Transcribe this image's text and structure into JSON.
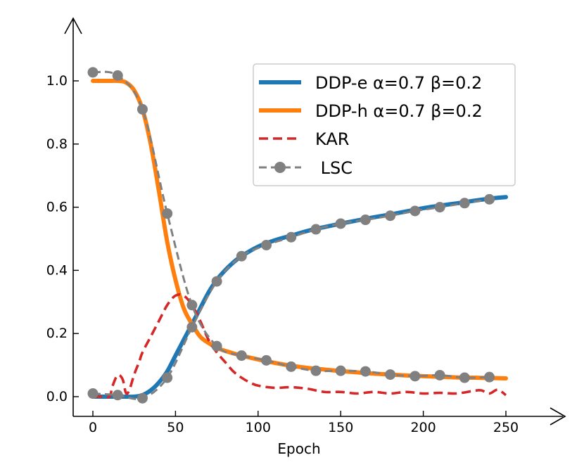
{
  "chart_data": {
    "type": "line",
    "title": "",
    "xlabel": "Epoch",
    "ylabel": "",
    "xlim": [
      -11,
      290
    ],
    "ylim": [
      -0.06,
      1.2
    ],
    "xticks": [
      0,
      50,
      100,
      150,
      200,
      250
    ],
    "yticks": [
      0.0,
      0.2,
      0.4,
      0.6,
      0.8,
      1.0
    ],
    "xtick_labels": [
      "0",
      "50",
      "100",
      "150",
      "200",
      "250"
    ],
    "ytick_labels": [
      "0.0",
      "0.2",
      "0.4",
      "0.6",
      "0.8",
      "1.0"
    ],
    "grid": false,
    "legend_position": "top-right",
    "series": [
      {
        "name": "DDP-e α=0.7 β=0.2",
        "color": "#1f77b4",
        "style": "solid",
        "x": [
          0,
          10,
          20,
          25,
          30,
          35,
          40,
          45,
          50,
          55,
          60,
          65,
          70,
          75,
          80,
          85,
          90,
          100,
          110,
          120,
          130,
          140,
          150,
          160,
          170,
          180,
          190,
          200,
          210,
          220,
          230,
          240,
          250
        ],
        "y": [
          0.0,
          0.0,
          0.0,
          0.0,
          0.005,
          0.02,
          0.045,
          0.08,
          0.13,
          0.18,
          0.23,
          0.28,
          0.33,
          0.37,
          0.4,
          0.425,
          0.445,
          0.475,
          0.495,
          0.51,
          0.525,
          0.537,
          0.548,
          0.558,
          0.568,
          0.577,
          0.587,
          0.597,
          0.605,
          0.612,
          0.62,
          0.627,
          0.632
        ]
      },
      {
        "name": "DDP-h α=0.7 β=0.2",
        "color": "#ff7f0e",
        "style": "solid",
        "x": [
          0,
          10,
          15,
          20,
          25,
          30,
          35,
          40,
          45,
          50,
          55,
          60,
          65,
          70,
          75,
          80,
          90,
          100,
          110,
          120,
          130,
          140,
          150,
          160,
          170,
          180,
          190,
          200,
          210,
          220,
          230,
          240,
          250
        ],
        "y": [
          1.0,
          1.0,
          1.0,
          0.995,
          0.97,
          0.91,
          0.8,
          0.65,
          0.49,
          0.37,
          0.28,
          0.23,
          0.19,
          0.17,
          0.155,
          0.145,
          0.13,
          0.118,
          0.107,
          0.098,
          0.091,
          0.086,
          0.081,
          0.077,
          0.073,
          0.07,
          0.067,
          0.065,
          0.063,
          0.061,
          0.06,
          0.059,
          0.058
        ]
      },
      {
        "name": "KAR",
        "color": "#d62728",
        "style": "dashed",
        "x": [
          0,
          5,
          10,
          12,
          15,
          18,
          20,
          22,
          25,
          28,
          30,
          35,
          40,
          45,
          50,
          55,
          60,
          65,
          70,
          75,
          80,
          85,
          90,
          95,
          100,
          110,
          120,
          130,
          140,
          150,
          160,
          170,
          180,
          190,
          200,
          210,
          220,
          230,
          235,
          240,
          245,
          250
        ],
        "y": [
          0.0,
          0.0,
          0.0,
          0.035,
          0.068,
          0.055,
          0.012,
          0.02,
          0.07,
          0.11,
          0.14,
          0.19,
          0.24,
          0.29,
          0.32,
          0.32,
          0.29,
          0.24,
          0.18,
          0.14,
          0.11,
          0.08,
          0.06,
          0.045,
          0.035,
          0.028,
          0.03,
          0.025,
          0.015,
          0.015,
          0.01,
          0.015,
          0.01,
          0.015,
          0.01,
          0.012,
          0.01,
          0.018,
          0.02,
          0.01,
          0.022,
          0.005
        ]
      },
      {
        "name": " LSC",
        "color": "#808080",
        "style": "dashed-markers",
        "x": [
          0,
          15,
          30,
          45,
          60,
          75,
          90,
          105,
          120,
          135,
          150,
          165,
          180,
          195,
          210,
          225,
          240
        ],
        "y": [
          0.01,
          0.005,
          -0.005,
          0.06,
          0.22,
          0.365,
          0.445,
          0.48,
          0.505,
          0.53,
          0.548,
          0.56,
          0.573,
          0.588,
          0.6,
          0.613,
          0.625
        ],
        "x2": [
          0,
          15,
          30,
          45,
          60,
          75,
          90,
          105,
          120,
          135,
          150,
          165,
          180,
          195,
          210,
          225,
          240
        ],
        "y2": [
          1.027,
          1.017,
          0.91,
          0.58,
          0.29,
          0.16,
          0.13,
          0.115,
          0.095,
          0.082,
          0.082,
          0.08,
          0.07,
          0.065,
          0.068,
          0.06,
          0.062
        ]
      }
    ]
  }
}
